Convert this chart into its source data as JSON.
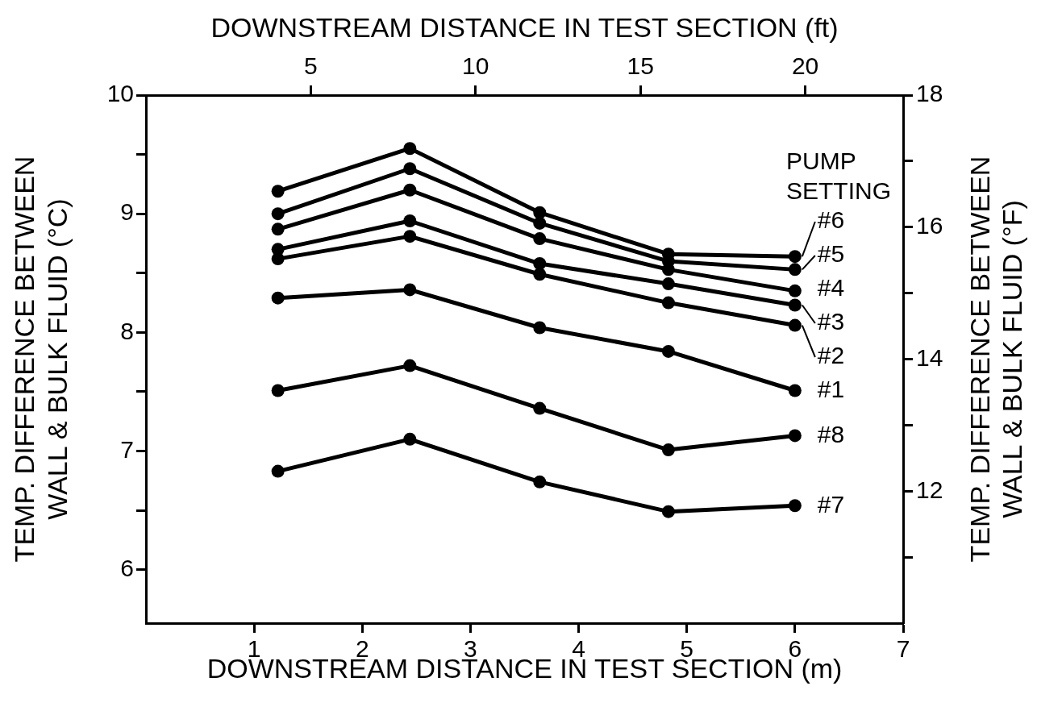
{
  "chart_data": {
    "type": "line",
    "xlabel": "DOWNSTREAM DISTANCE IN TEST SECTION (m)",
    "x2label": "DOWNSTREAM DISTANCE IN TEST SECTION (ft)",
    "ylabel": "TEMP. DIFFERENCE BETWEEN WALL & BULK FLUID (°C)",
    "y2label": "TEMP. DIFFERENCE BETWEEN WALL & BULK FLUID (°F)",
    "legend": "right",
    "legend_title": "PUMP SETTING",
    "x": [
      1.22,
      2.44,
      3.64,
      4.83,
      6.0
    ],
    "series": [
      {
        "name": "#6",
        "color": "#000000",
        "values": [
          9.19,
          9.55,
          9.01,
          8.66,
          8.64
        ]
      },
      {
        "name": "#5",
        "color": "#000000",
        "values": [
          9.0,
          9.38,
          8.92,
          8.6,
          8.53
        ]
      },
      {
        "name": "#4",
        "color": "#000000",
        "values": [
          8.87,
          9.2,
          8.79,
          8.53,
          8.35
        ]
      },
      {
        "name": "#3",
        "color": "#000000",
        "values": [
          8.7,
          8.94,
          8.58,
          8.41,
          8.23
        ]
      },
      {
        "name": "#2",
        "color": "#000000",
        "values": [
          8.62,
          8.81,
          8.49,
          8.25,
          8.06
        ]
      },
      {
        "name": "#1",
        "color": "#000000",
        "values": [
          8.29,
          8.36,
          8.04,
          7.84,
          7.51
        ]
      },
      {
        "name": "#8",
        "color": "#000000",
        "values": [
          7.51,
          7.72,
          7.36,
          7.01,
          7.13
        ]
      },
      {
        "name": "#7",
        "color": "#000000",
        "values": [
          6.83,
          7.1,
          6.74,
          6.49,
          6.54
        ]
      }
    ],
    "xlim": [
      0,
      7
    ],
    "xticks": [
      1,
      2,
      3,
      4,
      5,
      6,
      7
    ],
    "x2lim": [
      0,
      22.97
    ],
    "x2ticks": [
      5,
      10,
      15,
      20
    ],
    "ylim": [
      5.55,
      10
    ],
    "yticks": [
      6,
      {
        "value": 6.5,
        "label": null
      },
      7,
      {
        "value": 7.5,
        "label": null
      },
      8,
      {
        "value": 8.5,
        "label": null
      },
      9,
      {
        "value": 9.5,
        "label": null
      },
      10
    ],
    "y2lim": [
      10,
      18
    ],
    "y2ticks": [
      {
        "value": 11,
        "label": null
      },
      12,
      {
        "value": 13,
        "label": null
      },
      14,
      {
        "value": 15,
        "label": null
      },
      16,
      {
        "value": 17,
        "label": null
      },
      18
    ],
    "marker": "circle",
    "line_style": "solid"
  }
}
